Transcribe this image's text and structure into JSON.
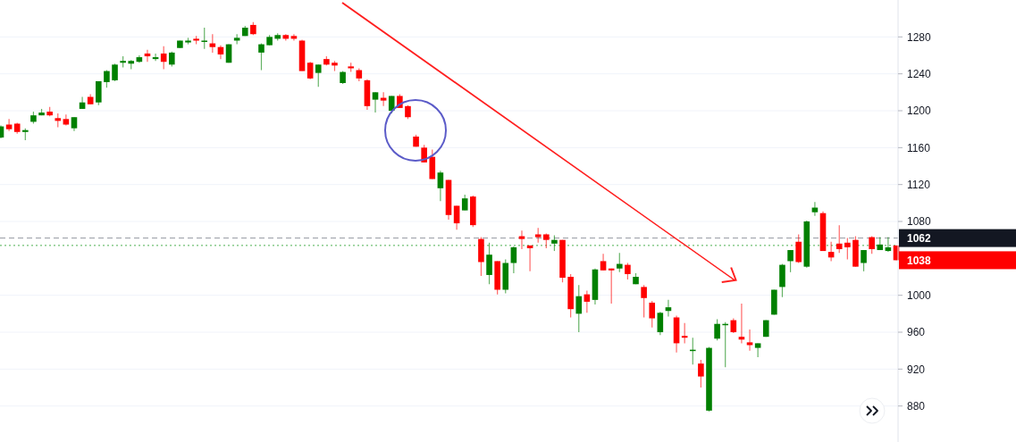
{
  "chart_data": {
    "type": "candlestick",
    "categories": [
      null,
      null,
      null,
      null,
      null,
      null,
      null,
      null,
      null,
      null,
      null,
      null,
      null,
      null,
      null,
      null,
      null,
      null,
      null,
      null,
      null,
      null,
      null,
      null,
      null,
      null,
      null,
      null,
      null,
      null,
      null,
      null,
      null,
      null,
      null,
      null,
      null,
      null,
      null,
      null,
      null,
      null,
      null,
      null,
      null,
      null,
      null,
      null,
      null,
      null,
      null,
      null,
      null,
      null,
      null,
      null,
      null,
      null,
      null,
      null,
      null,
      null,
      null,
      null,
      null,
      null,
      null,
      null,
      null,
      null,
      null,
      null,
      null,
      null,
      null,
      null,
      null,
      null,
      null,
      null,
      null,
      null,
      null,
      null,
      null,
      null,
      null,
      null,
      null,
      null,
      null,
      null,
      null,
      null,
      null,
      null,
      null,
      null,
      null,
      null,
      null,
      null,
      null,
      null,
      null,
      null,
      null,
      null,
      null,
      null,
      null
    ],
    "ohlc": [
      [
        1171,
        1184,
        1170,
        1183
      ],
      [
        1185,
        1191,
        1178,
        1180
      ],
      [
        1186,
        1187,
        1175,
        1177
      ],
      [
        1177,
        1181,
        1168,
        1179
      ],
      [
        1188,
        1199,
        1186,
        1195
      ],
      [
        1195,
        1202,
        1195,
        1198
      ],
      [
        1199,
        1204,
        1194,
        1195
      ],
      [
        1192,
        1197,
        1182,
        1189
      ],
      [
        1191,
        1196,
        1184,
        1185
      ],
      [
        1181,
        1193,
        1178,
        1193
      ],
      [
        1202,
        1215,
        1202,
        1209
      ],
      [
        1215,
        1218,
        1207,
        1207
      ],
      [
        1209,
        1232,
        1206,
        1232
      ],
      [
        1231,
        1244,
        1225,
        1243
      ],
      [
        1233,
        1251,
        1232,
        1250
      ],
      [
        1252,
        1259,
        1247,
        1254
      ],
      [
        1251,
        1255,
        1245,
        1254
      ],
      [
        1253,
        1260,
        1252,
        1258
      ],
      [
        1262,
        1266,
        1253,
        1259
      ],
      [
        1256,
        1262,
        1254,
        1258
      ],
      [
        1262,
        1270,
        1245,
        1253
      ],
      [
        1250,
        1264,
        1248,
        1263
      ],
      [
        1268,
        1276,
        1268,
        1276
      ],
      [
        1274,
        1279,
        1272,
        1276
      ],
      [
        1278,
        1281,
        1272,
        1276
      ],
      [
        1275,
        1290,
        1267,
        1276
      ],
      [
        1273,
        1283,
        1263,
        1269
      ],
      [
        1269,
        1271,
        1256,
        1261
      ],
      [
        1252,
        1272,
        1252,
        1272
      ],
      [
        1276,
        1283,
        1272,
        1279
      ],
      [
        1281,
        1292,
        1281,
        1290
      ],
      [
        1293,
        1296,
        1282,
        1283
      ],
      [
        1263,
        1273,
        1244,
        1272
      ],
      [
        1271,
        1282,
        1271,
        1280
      ],
      [
        1278,
        1284,
        1276,
        1282
      ],
      [
        1282,
        1283,
        1276,
        1278
      ],
      [
        1281,
        1283,
        1276,
        1278
      ],
      [
        1276,
        1277,
        1243,
        1243
      ],
      [
        1252,
        1253,
        1234,
        1235
      ],
      [
        1241,
        1250,
        1226,
        1250
      ],
      [
        1256,
        1259,
        1249,
        1250
      ],
      [
        1252,
        1254,
        1243,
        1249
      ],
      [
        1230,
        1243,
        1229,
        1242
      ],
      [
        1248,
        1252,
        1242,
        1246
      ],
      [
        1244,
        1246,
        1232,
        1235
      ],
      [
        1233,
        1234,
        1201,
        1205
      ],
      [
        1212,
        1220,
        1198,
        1220
      ],
      [
        1214,
        1220,
        1205,
        1211
      ],
      [
        1200,
        1216,
        1197,
        1216
      ],
      [
        1216,
        1218,
        1203,
        1203
      ],
      [
        1205,
        1206,
        1191,
        1193
      ],
      [
        1172,
        1174,
        1161,
        1161
      ],
      [
        1160,
        1163,
        1144,
        1144
      ],
      [
        1150,
        1158,
        1126,
        1126
      ],
      [
        1116,
        1135,
        1102,
        1133
      ],
      [
        1125,
        1125,
        1082,
        1087
      ],
      [
        1097,
        1097,
        1071,
        1078
      ],
      [
        1092,
        1109,
        1092,
        1105
      ],
      [
        1107,
        1108,
        1074,
        1076
      ],
      [
        1061,
        1063,
        1021,
        1036
      ],
      [
        1022,
        1057,
        1012,
        1044
      ],
      [
        1037,
        1037,
        1001,
        1006
      ],
      [
        1006,
        1039,
        1002,
        1035
      ],
      [
        1035,
        1053,
        1024,
        1052
      ],
      [
        1064,
        1070,
        1050,
        1061
      ],
      [
        1054,
        1054,
        1026,
        1051
      ],
      [
        1066,
        1073,
        1057,
        1063
      ],
      [
        1066,
        1067,
        1051,
        1060
      ],
      [
        1056,
        1065,
        1048,
        1060
      ],
      [
        1060,
        1060,
        1014,
        1019
      ],
      [
        1020,
        1023,
        976,
        985
      ],
      [
        980,
        1011,
        960,
        999
      ],
      [
        1001,
        1005,
        981,
        993
      ],
      [
        995,
        1029,
        990,
        1028
      ],
      [
        1037,
        1045,
        1027,
        1027
      ],
      [
        1029,
        1029,
        991,
        1027
      ],
      [
        1029,
        1046,
        1025,
        1034
      ],
      [
        1033,
        1035,
        1017,
        1023
      ],
      [
        1012,
        1024,
        1012,
        1020
      ],
      [
        1009,
        1011,
        976,
        997
      ],
      [
        992,
        994,
        965,
        975
      ],
      [
        960,
        982,
        957,
        981
      ],
      [
        983,
        995,
        977,
        987
      ],
      [
        976,
        978,
        938,
        948
      ],
      [
        956,
        970,
        948,
        954
      ],
      [
        940,
        954,
        925,
        941
      ],
      [
        926,
        930,
        900,
        912
      ],
      [
        875,
        944,
        874,
        943
      ],
      [
        953,
        974,
        951,
        969
      ],
      [
        968,
        971,
        922,
        969
      ],
      [
        973,
        975,
        959,
        960
      ],
      [
        955,
        991,
        948,
        952
      ],
      [
        949,
        963,
        940,
        946
      ],
      [
        943,
        948,
        933,
        948
      ],
      [
        955,
        973,
        955,
        973
      ],
      [
        979,
        1006,
        979,
        1006
      ],
      [
        1009,
        1034,
        998,
        1033
      ],
      [
        1037,
        1049,
        1025,
        1049
      ],
      [
        1058,
        1066,
        1035,
        1036
      ],
      [
        1031,
        1081,
        1030,
        1080
      ],
      [
        1090,
        1101,
        1086,
        1095
      ],
      [
        1089,
        1091,
        1048,
        1048
      ],
      [
        1047,
        1058,
        1037,
        1041
      ],
      [
        1056,
        1076,
        1046,
        1050
      ],
      [
        1057,
        1062,
        1039,
        1052
      ],
      [
        1060,
        1064,
        1031,
        1031
      ],
      [
        1035,
        1049,
        1026,
        1049
      ],
      [
        1063,
        1064,
        1045,
        1050
      ],
      [
        1049,
        1063,
        1049,
        1055
      ],
      [
        1048,
        1063,
        1047,
        1052
      ],
      [
        1054,
        1054,
        1038,
        1038
      ]
    ],
    "ylim": [
      841,
      1320
    ],
    "yticks": [
      880,
      920,
      960,
      1000,
      1080,
      1120,
      1160,
      1200,
      1240,
      1280
    ],
    "tick_labels": "y",
    "grid": "y",
    "ref_lines": [
      {
        "axis": "y",
        "value": 1062,
        "label": "1062",
        "color": "#9598a1",
        "line_style": "dashed"
      },
      {
        "axis": "y",
        "value": 1054,
        "label": null,
        "color": "#4caf50",
        "line_style": "dotted"
      }
    ],
    "annotations": [
      "1038"
    ]
  }
}
